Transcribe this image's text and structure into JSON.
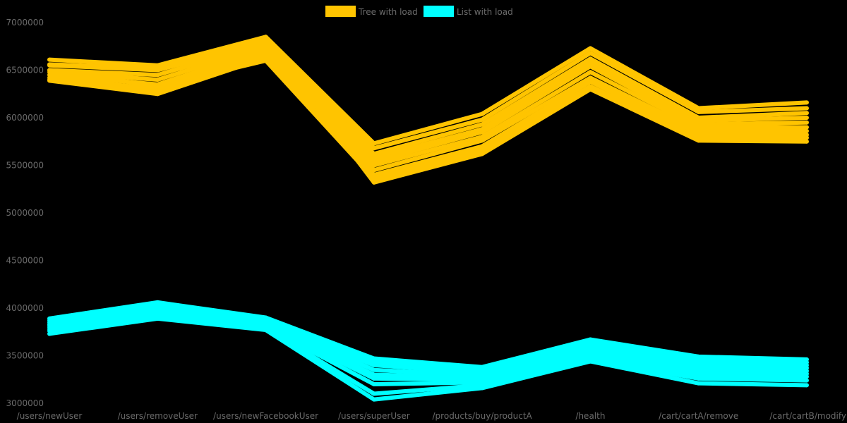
{
  "chart_data": {
    "type": "line",
    "title": "",
    "xlabel": "",
    "ylabel": "",
    "ylim": [
      3000000,
      7000000
    ],
    "yticks": [
      3000000,
      3500000,
      4000000,
      4500000,
      5000000,
      5500000,
      6000000,
      6500000,
      7000000
    ],
    "grid": false,
    "legend_position": "top",
    "categories": [
      "/users/newUser",
      "/users/removeUser",
      "/users/newFacebookUser",
      "/users/superUser",
      "/products/buy/productA",
      "/health",
      "/cart/cartA/remove",
      "/cart/cartB/modify"
    ],
    "series_groups": [
      {
        "name": "Tree with load",
        "color": "#ffc400",
        "runs": [
          [
            6610000,
            6550000,
            6850000,
            5730000,
            6040000,
            6730000,
            6100000,
            6160000
          ],
          [
            6550000,
            6500000,
            6800000,
            5680000,
            5980000,
            6680000,
            6060000,
            6100000
          ],
          [
            6500000,
            6450000,
            6780000,
            5620000,
            5930000,
            6620000,
            6000000,
            6050000
          ],
          [
            6480000,
            6400000,
            6750000,
            5580000,
            5880000,
            6580000,
            5970000,
            6000000
          ],
          [
            6450000,
            6350000,
            6720000,
            5540000,
            5850000,
            6540000,
            5930000,
            5950000
          ],
          [
            6420000,
            6300000,
            6700000,
            5500000,
            5800000,
            6480000,
            5900000,
            5900000
          ],
          [
            6400000,
            6280000,
            6660000,
            5450000,
            5760000,
            6420000,
            5860000,
            5860000
          ],
          [
            6390000,
            6250000,
            6630000,
            5400000,
            5700000,
            6380000,
            5820000,
            5820000
          ],
          [
            6500000,
            6330000,
            6600000,
            5360000,
            5660000,
            6330000,
            5790000,
            5790000
          ],
          [
            6560000,
            6520000,
            6820000,
            5320000,
            5620000,
            6300000,
            5760000,
            5750000
          ]
        ]
      },
      {
        "name": "List with load",
        "color": "#00ffff",
        "runs": [
          [
            3890000,
            4060000,
            3900000,
            3470000,
            3380000,
            3670000,
            3490000,
            3460000
          ],
          [
            3870000,
            4030000,
            3880000,
            3440000,
            3350000,
            3640000,
            3460000,
            3430000
          ],
          [
            3850000,
            4000000,
            3860000,
            3400000,
            3320000,
            3600000,
            3430000,
            3400000
          ],
          [
            3830000,
            3980000,
            3850000,
            3350000,
            3290000,
            3580000,
            3400000,
            3370000
          ],
          [
            3820000,
            3960000,
            3830000,
            3300000,
            3270000,
            3550000,
            3370000,
            3340000
          ],
          [
            3800000,
            3940000,
            3820000,
            3260000,
            3250000,
            3520000,
            3340000,
            3310000
          ],
          [
            3780000,
            3920000,
            3800000,
            3200000,
            3220000,
            3490000,
            3300000,
            3280000
          ],
          [
            3760000,
            3900000,
            3790000,
            3100000,
            3190000,
            3460000,
            3260000,
            3240000
          ],
          [
            3730000,
            3890000,
            3770000,
            3040000,
            3160000,
            3440000,
            3210000,
            3190000
          ]
        ]
      }
    ]
  },
  "legend": {
    "items": [
      {
        "label": "Tree with load",
        "color": "#ffc400"
      },
      {
        "label": "List with load",
        "color": "#00ffff"
      }
    ]
  }
}
